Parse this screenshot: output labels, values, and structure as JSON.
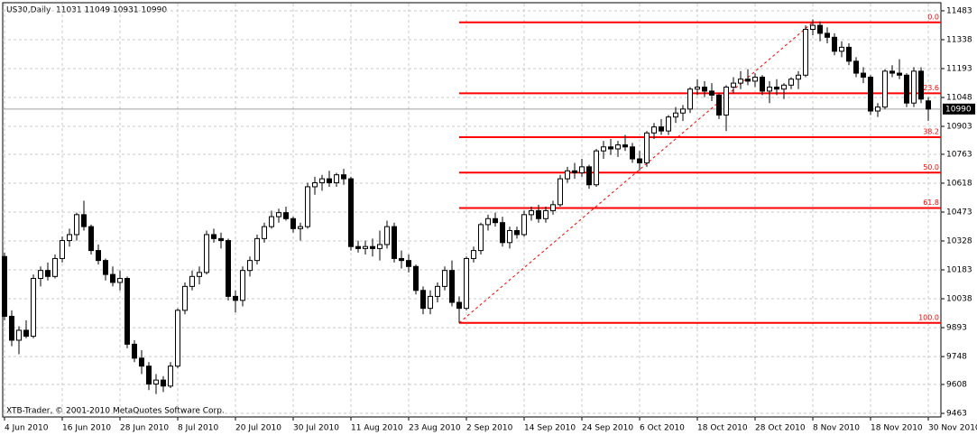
{
  "chart_data": {
    "type": "candlestick",
    "title": "US30,Daily",
    "ohlc_label": "11031 11049 10931 10990",
    "footer": "XTB-Trader, © 2001-2010 MetaQuotes Software Corp.",
    "categories": [
      "4 Jun 2010",
      null,
      null,
      null,
      null,
      null,
      null,
      null,
      "16 Jun 2010",
      null,
      null,
      null,
      null,
      null,
      null,
      null,
      "28 Jun 2010",
      null,
      null,
      null,
      null,
      null,
      null,
      null,
      "8 Jul 2010",
      null,
      null,
      null,
      null,
      null,
      null,
      null,
      "20 Jul 2010",
      null,
      null,
      null,
      null,
      null,
      null,
      null,
      "30 Jul 2010",
      null,
      null,
      null,
      null,
      null,
      null,
      null,
      "11 Aug 2010",
      null,
      null,
      null,
      null,
      null,
      null,
      null,
      "23 Aug 2010",
      null,
      null,
      null,
      null,
      null,
      null,
      null,
      "2 Sep 2010",
      null,
      null,
      null,
      null,
      null,
      null,
      null,
      "14 Sep 2010",
      null,
      null,
      null,
      null,
      null,
      null,
      null,
      "24 Sep 2010",
      null,
      null,
      null,
      null,
      null,
      null,
      null,
      "6 Oct 2010",
      null,
      null,
      null,
      null,
      null,
      null,
      null,
      "18 Oct 2010",
      null,
      null,
      null,
      null,
      null,
      null,
      null,
      "28 Oct 2010",
      null,
      null,
      null,
      null,
      null,
      null,
      null,
      "8 Nov 2010",
      null,
      null,
      null,
      null,
      null,
      null,
      null,
      "18 Nov 2010",
      null,
      null,
      null,
      null,
      null,
      null,
      null,
      "30 Nov 2010"
    ],
    "ohlc": [
      [
        10250,
        10270,
        9930,
        9950
      ],
      [
        9950,
        9980,
        9800,
        9830
      ],
      [
        9830,
        9900,
        9760,
        9880
      ],
      [
        9880,
        9930,
        9840,
        9850
      ],
      [
        9850,
        10160,
        9840,
        10140
      ],
      [
        10140,
        10200,
        10100,
        10180
      ],
      [
        10180,
        10220,
        10130,
        10150
      ],
      [
        10150,
        10260,
        10140,
        10240
      ],
      [
        10240,
        10350,
        10220,
        10330
      ],
      [
        10330,
        10390,
        10300,
        10360
      ],
      [
        10360,
        10470,
        10330,
        10460
      ],
      [
        10460,
        10530,
        10380,
        10400
      ],
      [
        10400,
        10410,
        10260,
        10280
      ],
      [
        10280,
        10310,
        10210,
        10230
      ],
      [
        10230,
        10240,
        10130,
        10160
      ],
      [
        10160,
        10200,
        10100,
        10120
      ],
      [
        10120,
        10180,
        10080,
        10140
      ],
      [
        10140,
        10150,
        9790,
        9810
      ],
      [
        9810,
        9830,
        9720,
        9740
      ],
      [
        9740,
        9780,
        9660,
        9700
      ],
      [
        9700,
        9720,
        9580,
        9610
      ],
      [
        9610,
        9660,
        9560,
        9630
      ],
      [
        9630,
        9650,
        9570,
        9600
      ],
      [
        9600,
        9720,
        9590,
        9700
      ],
      [
        9700,
        9990,
        9690,
        9980
      ],
      [
        9980,
        10120,
        9960,
        10100
      ],
      [
        10100,
        10180,
        10080,
        10150
      ],
      [
        10150,
        10200,
        10110,
        10170
      ],
      [
        10170,
        10380,
        10160,
        10360
      ],
      [
        10360,
        10390,
        10320,
        10340
      ],
      [
        10340,
        10370,
        10290,
        10330
      ],
      [
        10330,
        10340,
        10030,
        10050
      ],
      [
        10050,
        10080,
        9970,
        10030
      ],
      [
        10030,
        10200,
        10000,
        10180
      ],
      [
        10180,
        10250,
        10150,
        10230
      ],
      [
        10230,
        10360,
        10210,
        10340
      ],
      [
        10340,
        10420,
        10320,
        10400
      ],
      [
        10400,
        10480,
        10390,
        10450
      ],
      [
        10450,
        10490,
        10420,
        10470
      ],
      [
        10470,
        10500,
        10430,
        10440
      ],
      [
        10440,
        10450,
        10370,
        10390
      ],
      [
        10390,
        10420,
        10330,
        10400
      ],
      [
        10400,
        10620,
        10390,
        10600
      ],
      [
        10600,
        10650,
        10560,
        10620
      ],
      [
        10620,
        10660,
        10580,
        10640
      ],
      [
        10640,
        10680,
        10600,
        10620
      ],
      [
        10620,
        10670,
        10600,
        10660
      ],
      [
        10660,
        10690,
        10610,
        10640
      ],
      [
        10640,
        10650,
        10280,
        10300
      ],
      [
        10300,
        10330,
        10270,
        10290
      ],
      [
        10290,
        10330,
        10260,
        10300
      ],
      [
        10300,
        10340,
        10250,
        10290
      ],
      [
        10290,
        10380,
        10230,
        10310
      ],
      [
        10310,
        10430,
        10290,
        10400
      ],
      [
        10400,
        10420,
        10220,
        10240
      ],
      [
        10240,
        10280,
        10190,
        10230
      ],
      [
        10230,
        10260,
        10170,
        10200
      ],
      [
        10200,
        10210,
        10060,
        10080
      ],
      [
        10080,
        10100,
        9960,
        9990
      ],
      [
        9990,
        10080,
        9960,
        10050
      ],
      [
        10050,
        10120,
        10020,
        10100
      ],
      [
        10100,
        10200,
        10080,
        10180
      ],
      [
        10180,
        10230,
        10000,
        10020
      ],
      [
        10020,
        10050,
        9917,
        9990
      ],
      [
        9990,
        10250,
        9980,
        10240
      ],
      [
        10240,
        10300,
        10220,
        10280
      ],
      [
        10280,
        10420,
        10260,
        10410
      ],
      [
        10410,
        10460,
        10380,
        10440
      ],
      [
        10440,
        10470,
        10400,
        10420
      ],
      [
        10420,
        10450,
        10300,
        10320
      ],
      [
        10320,
        10400,
        10290,
        10380
      ],
      [
        10380,
        10400,
        10340,
        10360
      ],
      [
        10360,
        10480,
        10350,
        10460
      ],
      [
        10460,
        10500,
        10430,
        10480
      ],
      [
        10480,
        10510,
        10420,
        10440
      ],
      [
        10440,
        10500,
        10420,
        10480
      ],
      [
        10480,
        10530,
        10460,
        10510
      ],
      [
        10510,
        10660,
        10500,
        10640
      ],
      [
        10640,
        10700,
        10620,
        10680
      ],
      [
        10680,
        10720,
        10640,
        10670
      ],
      [
        10670,
        10740,
        10650,
        10700
      ],
      [
        10700,
        10710,
        10590,
        10610
      ],
      [
        10610,
        10790,
        10600,
        10780
      ],
      [
        10780,
        10830,
        10740,
        10800
      ],
      [
        10800,
        10840,
        10760,
        10790
      ],
      [
        10790,
        10830,
        10750,
        10810
      ],
      [
        10810,
        10860,
        10780,
        10800
      ],
      [
        10800,
        10820,
        10720,
        10740
      ],
      [
        10740,
        10780,
        10680,
        10720
      ],
      [
        10720,
        10880,
        10700,
        10870
      ],
      [
        10870,
        10920,
        10840,
        10900
      ],
      [
        10900,
        10940,
        10860,
        10880
      ],
      [
        10880,
        10960,
        10860,
        10950
      ],
      [
        10950,
        11000,
        10920,
        10970
      ],
      [
        10970,
        11010,
        10930,
        10990
      ],
      [
        10990,
        11100,
        10970,
        11090
      ],
      [
        11090,
        11140,
        11060,
        11100
      ],
      [
        11100,
        11130,
        11050,
        11080
      ],
      [
        11080,
        11120,
        11030,
        11060
      ],
      [
        11060,
        11070,
        10940,
        10960
      ],
      [
        10960,
        11110,
        10880,
        11100
      ],
      [
        11100,
        11150,
        11070,
        11120
      ],
      [
        11120,
        11180,
        11090,
        11140
      ],
      [
        11140,
        11190,
        11110,
        11130
      ],
      [
        11130,
        11170,
        11100,
        11150
      ],
      [
        11150,
        11160,
        11060,
        11080
      ],
      [
        11080,
        11130,
        11020,
        11100
      ],
      [
        11100,
        11140,
        11060,
        11090
      ],
      [
        11090,
        11120,
        11040,
        11110
      ],
      [
        11110,
        11150,
        11090,
        11140
      ],
      [
        11140,
        11180,
        11090,
        11160
      ],
      [
        11160,
        11410,
        11150,
        11390
      ],
      [
        11390,
        11440,
        11360,
        11410
      ],
      [
        11410,
        11430,
        11330,
        11370
      ],
      [
        11370,
        11400,
        11320,
        11350
      ],
      [
        11350,
        11370,
        11260,
        11280
      ],
      [
        11280,
        11330,
        11250,
        11300
      ],
      [
        11300,
        11320,
        11210,
        11230
      ],
      [
        11230,
        11250,
        11150,
        11170
      ],
      [
        11170,
        11200,
        11120,
        11150
      ],
      [
        11150,
        11160,
        10960,
        10980
      ],
      [
        10980,
        11020,
        10950,
        11000
      ],
      [
        11000,
        11190,
        10990,
        11180
      ],
      [
        11180,
        11210,
        11150,
        11170
      ],
      [
        11170,
        11240,
        11140,
        11160
      ],
      [
        11160,
        11170,
        11000,
        11020
      ],
      [
        11020,
        11200,
        11000,
        11180
      ],
      [
        11180,
        11200,
        11020,
        11040
      ],
      [
        11031,
        11049,
        10931,
        10990
      ]
    ],
    "ylim": [
      9445,
      11519
    ],
    "yticks": [
      11483,
      11338,
      11193,
      11048,
      10903,
      10763,
      10618,
      10473,
      10328,
      10183,
      10038,
      9893,
      9748,
      9608,
      9463
    ],
    "grid": true,
    "current_price": 10990,
    "fibo": {
      "high": 11425,
      "low": 9917,
      "from_index": 63,
      "to_index": 112,
      "color": "#ff0000",
      "levels": [
        0,
        23.6,
        38.2,
        50,
        61.8,
        100
      ],
      "level_labels": [
        "0.0",
        "23.6",
        "38.2",
        "50.0",
        "61.8",
        "100.0"
      ]
    }
  }
}
